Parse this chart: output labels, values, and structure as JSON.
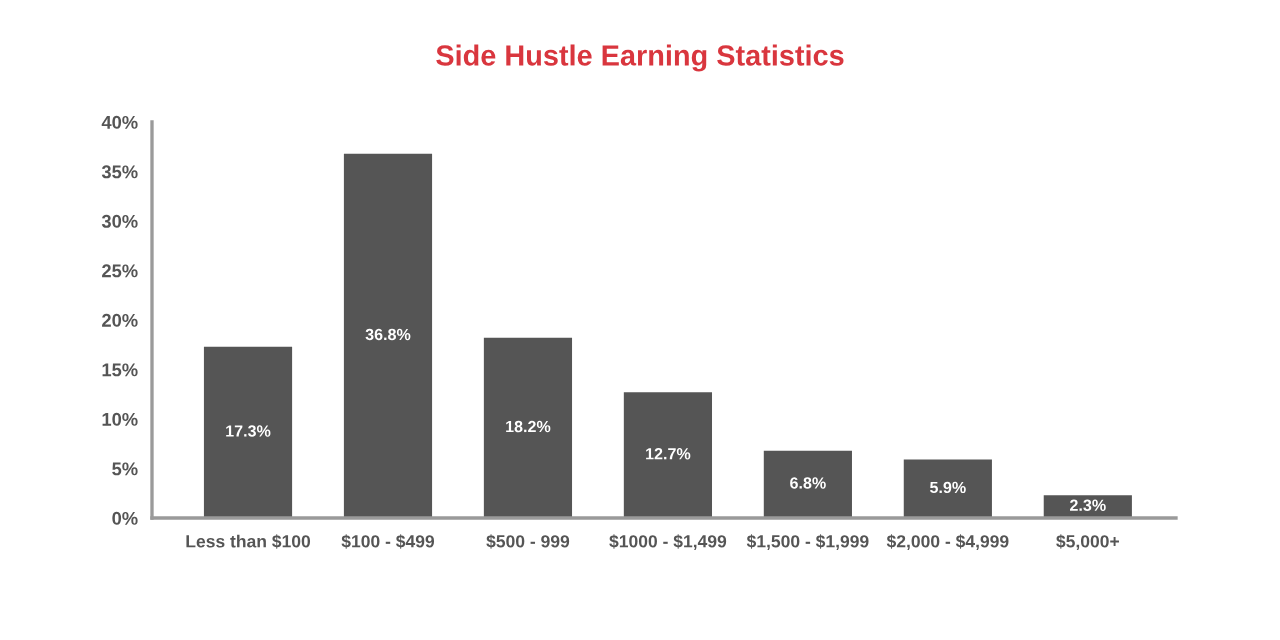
{
  "chart_data": {
    "type": "bar",
    "title": "Side Hustle Earning Statistics",
    "categories": [
      "Less than $100",
      "$100 - $499",
      "$500 - 999",
      "$1000 - $1,499",
      "$1,500 - $1,999",
      "$2,000 - $4,999",
      "$5,000+"
    ],
    "values": [
      17.3,
      36.8,
      18.2,
      12.7,
      6.8,
      5.9,
      2.3
    ],
    "value_labels": [
      "17.3%",
      "36.8%",
      "18.2%",
      "12.7%",
      "6.8%",
      "5.9%",
      "2.3%"
    ],
    "color": "#555555",
    "ylim": [
      0,
      40
    ],
    "yticks": [
      {
        "value": 0,
        "label": "0%"
      },
      {
        "value": 5,
        "label": "5%"
      },
      {
        "value": 10,
        "label": "10%"
      },
      {
        "value": 15,
        "label": "15%"
      },
      {
        "value": 20,
        "label": "20%"
      },
      {
        "value": 25,
        "label": "25%"
      },
      {
        "value": 30,
        "label": "30%"
      },
      {
        "value": 35,
        "label": "35%"
      },
      {
        "value": 40,
        "label": "40%"
      }
    ],
    "grid": false
  }
}
